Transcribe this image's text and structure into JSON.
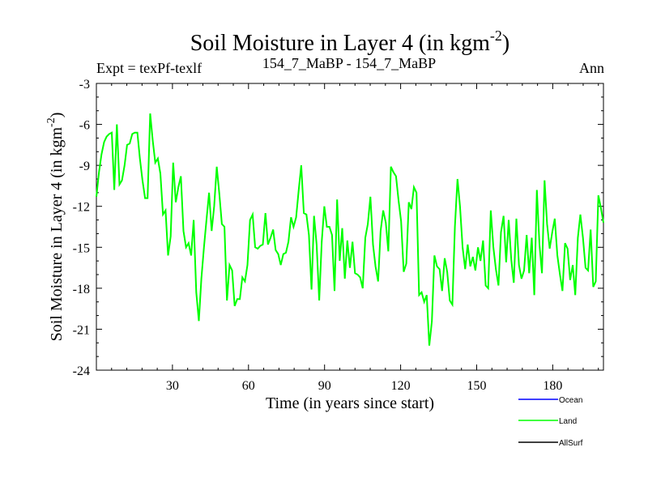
{
  "chart_data": {
    "type": "line",
    "title": "Soil Moisture in Layer 4 (in kgm",
    "title_sup": "-2",
    "title_close": ")",
    "subtitle_left": "Expt = texPf-texlf",
    "subtitle_center": "154_7_MaBP - 154_7_MaBP",
    "subtitle_right": "Ann",
    "xlabel": "Time (in years since start)",
    "ylabel": "Soil Moisture in Layer 4 (in kgm",
    "ylabel_sup": "-2",
    "ylabel_close": ")",
    "xlim": [
      0,
      200
    ],
    "ylim": [
      -24,
      -3
    ],
    "xticks": [
      30,
      60,
      90,
      120,
      150,
      180
    ],
    "yticks": [
      -3,
      -6,
      -9,
      -12,
      -15,
      -18,
      -21,
      -24
    ],
    "legend": [
      {
        "name": "Ocean",
        "color": "#0000ff"
      },
      {
        "name": "Land",
        "color": "#00ff00"
      },
      {
        "name": "AllSurf",
        "color": "#000000"
      }
    ],
    "series": [
      {
        "name": "Land",
        "color": "#00ff00",
        "values": [
          -11.3,
          -9.5,
          -8.2,
          -7.3,
          -6.9,
          -6.7,
          -6.6,
          -10.8,
          -6.0,
          -10.4,
          -10.1,
          -9.0,
          -7.5,
          -7.4,
          -6.7,
          -6.6,
          -6.6,
          -8.5,
          -10.1,
          -11.4,
          -11.4,
          -5.2,
          -7.2,
          -8.8,
          -8.5,
          -9.6,
          -12.6,
          -12.3,
          -15.6,
          -14.2,
          -8.8,
          -11.7,
          -10.6,
          -9.8,
          -13.8,
          -15.0,
          -14.7,
          -15.6,
          -13.0,
          -18.3,
          -20.4,
          -17.3,
          -15.0,
          -13.0,
          -11.0,
          -13.8,
          -12.0,
          -9.1,
          -11.1,
          -13.3,
          -13.5,
          -18.9,
          -16.3,
          -16.7,
          -19.3,
          -18.8,
          -18.8,
          -17.2,
          -17.5,
          -16.3,
          -13.0,
          -12.6,
          -15.0,
          -15.1,
          -14.9,
          -14.8,
          -12.5,
          -14.8,
          -14.3,
          -13.7,
          -15.2,
          -15.5,
          -16.3,
          -15.5,
          -15.4,
          -14.6,
          -12.8,
          -13.5,
          -12.8,
          -10.8,
          -9.0,
          -12.5,
          -12.6,
          -14.1,
          -18.1,
          -12.7,
          -14.8,
          -18.9,
          -14.6,
          -12.0,
          -13.5,
          -13.5,
          -14.1,
          -18.2,
          -11.5,
          -16.0,
          -13.6,
          -17.3,
          -14.5,
          -16.5,
          -14.6,
          -16.9,
          -17.0,
          -17.2,
          -18.0,
          -14.3,
          -13.3,
          -11.3,
          -14.8,
          -16.4,
          -17.5,
          -13.8,
          -12.3,
          -13.2,
          -15.3,
          -9.1,
          -9.5,
          -9.8,
          -11.6,
          -13.1,
          -16.8,
          -16.2,
          -11.7,
          -12.2,
          -10.6,
          -11.0,
          -18.5,
          -18.3,
          -19.0,
          -18.5,
          -22.2,
          -20.4,
          -15.6,
          -16.4,
          -16.6,
          -18.2,
          -15.8,
          -16.8,
          -18.9,
          -19.2,
          -13.5,
          -10.0,
          -12.0,
          -15.0,
          -16.6,
          -14.8,
          -16.4,
          -15.7,
          -16.7,
          -15.0,
          -16.0,
          -14.5,
          -17.8,
          -18.0,
          -12.3,
          -15.0,
          -16.6,
          -17.8,
          -13.9,
          -12.7,
          -16.1,
          -13.0,
          -15.9,
          -17.6,
          -12.9,
          -16.3,
          -17.3,
          -16.7,
          -14.1,
          -16.9,
          -14.3,
          -18.5,
          -10.8,
          -14.8,
          -16.9,
          -10.1,
          -13.3,
          -15.1,
          -13.9,
          -12.9,
          -15.6,
          -17.0,
          -18.2,
          -14.7,
          -15.1,
          -17.4,
          -16.3,
          -18.5,
          -14.3,
          -12.6,
          -14.3,
          -16.5,
          -16.7,
          -13.7,
          -17.9,
          -17.5,
          -11.2,
          -12.1,
          -13.2
        ]
      }
    ]
  }
}
